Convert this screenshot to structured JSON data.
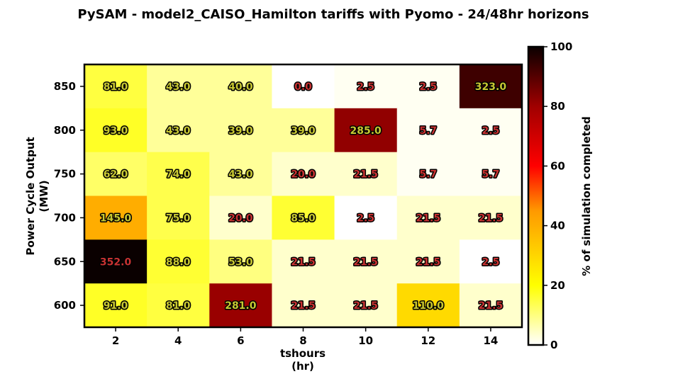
{
  "chart_data": {
    "type": "heatmap",
    "title": "PySAM - model2_CAISO_Hamilton tariffs with Pyomo - 24/48hr horizons",
    "xlabel": "tshours",
    "xlabel_unit": "(hr)",
    "ylabel": "Power Cycle Output",
    "ylabel_unit": "(MW)",
    "x": [
      "2",
      "4",
      "6",
      "8",
      "10",
      "12",
      "14"
    ],
    "y": [
      "850",
      "800",
      "750",
      "700",
      "650",
      "600"
    ],
    "cells": [
      {
        "label": "81.0",
        "pct": 15
      },
      {
        "label": "43.0",
        "pct": 8
      },
      {
        "label": "40.0",
        "pct": 8
      },
      {
        "label": "0.0",
        "pct": 0
      },
      {
        "label": "2.5",
        "pct": 1
      },
      {
        "label": "2.5",
        "pct": 1
      },
      {
        "label": "323.0",
        "pct": 93
      },
      {
        "label": "93.0",
        "pct": 17
      },
      {
        "label": "43.0",
        "pct": 8
      },
      {
        "label": "39.0",
        "pct": 8
      },
      {
        "label": "39.0",
        "pct": 8
      },
      {
        "label": "285.0",
        "pct": 82
      },
      {
        "label": "5.7",
        "pct": 1
      },
      {
        "label": "2.5",
        "pct": 1
      },
      {
        "label": "62.0",
        "pct": 12
      },
      {
        "label": "74.0",
        "pct": 14
      },
      {
        "label": "43.0",
        "pct": 8
      },
      {
        "label": "20.0",
        "pct": 4
      },
      {
        "label": "21.5",
        "pct": 4
      },
      {
        "label": "5.7",
        "pct": 1
      },
      {
        "label": "5.7",
        "pct": 1
      },
      {
        "label": "145.0",
        "pct": 40
      },
      {
        "label": "75.0",
        "pct": 14
      },
      {
        "label": "20.0",
        "pct": 4
      },
      {
        "label": "85.0",
        "pct": 16
      },
      {
        "label": "2.5",
        "pct": 0
      },
      {
        "label": "21.5",
        "pct": 4
      },
      {
        "label": "21.5",
        "pct": 4
      },
      {
        "label": "352.0",
        "pct": 100
      },
      {
        "label": "88.0",
        "pct": 16
      },
      {
        "label": "53.0",
        "pct": 10
      },
      {
        "label": "21.5",
        "pct": 4
      },
      {
        "label": "21.5",
        "pct": 4
      },
      {
        "label": "21.5",
        "pct": 4
      },
      {
        "label": "2.5",
        "pct": 0
      },
      {
        "label": "91.0",
        "pct": 17
      },
      {
        "label": "81.0",
        "pct": 15
      },
      {
        "label": "281.0",
        "pct": 81
      },
      {
        "label": "21.5",
        "pct": 4
      },
      {
        "label": "21.5",
        "pct": 4
      },
      {
        "label": "110.0",
        "pct": 29
      },
      {
        "label": "21.5",
        "pct": 4
      }
    ],
    "colorbar": {
      "label": "% of simulation completed",
      "range": [
        0,
        100
      ],
      "ticks": [
        "0",
        "20",
        "40",
        "60",
        "80",
        "100"
      ],
      "colormap": "hot_r"
    },
    "label_colors": {
      "light": "#c8c832",
      "dark": "#c83232"
    },
    "grid": false
  }
}
